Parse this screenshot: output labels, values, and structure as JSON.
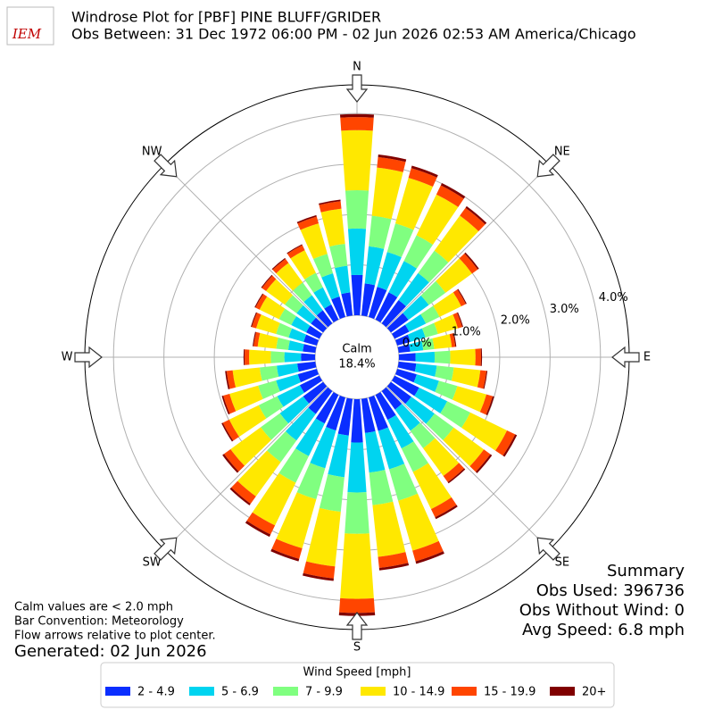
{
  "chart_data": {
    "type": "windrose",
    "logo_text": "IEM",
    "title": "Windrose Plot for [PBF] PINE BLUFF/GRIDER",
    "subtitle": "Obs Between: 31 Dec 1972 06:00 PM - 02 Jun 2026 02:53 AM America/Chicago",
    "calm_label": "Calm",
    "calm_value": "18.4%",
    "compass": [
      "N",
      "NE",
      "E",
      "SE",
      "S",
      "SW",
      "W",
      "NW"
    ],
    "categories": [
      null,
      null,
      null,
      null,
      null,
      null,
      null,
      null,
      null,
      null,
      null,
      null,
      null,
      null,
      null,
      null,
      null,
      null,
      null,
      null,
      null,
      null,
      null,
      null,
      null,
      null,
      null,
      null,
      null,
      null,
      null,
      null,
      null,
      null,
      null,
      null
    ],
    "rlim": [
      0,
      4.57
    ],
    "rticks": [
      {
        "value": 0,
        "label": "0.0%"
      },
      {
        "value": 1,
        "label": "1.0%"
      },
      {
        "value": 2,
        "label": "2.0%"
      },
      {
        "value": 3,
        "label": "3.0%"
      },
      {
        "value": 4,
        "label": "4.0%"
      }
    ],
    "grid": true,
    "legend_title": "Wind Speed [mph]",
    "series": [
      {
        "name": "2 - 4.9",
        "color": "#0a2eff",
        "values": [
          0.8,
          0.64,
          0.62,
          0.6,
          0.57,
          0.43,
          0.32,
          0.27,
          0.23,
          0.33,
          0.35,
          0.4,
          0.54,
          0.5,
          0.45,
          0.55,
          0.69,
          0.68,
          0.86,
          0.73,
          0.68,
          0.63,
          0.56,
          0.49,
          0.43,
          0.39,
          0.36,
          0.28,
          0.25,
          0.27,
          0.29,
          0.3,
          0.32,
          0.33,
          0.42,
          0.46
        ]
      },
      {
        "name": "5 - 6.9",
        "color": "#00d4f0",
        "values": [
          0.92,
          0.74,
          0.72,
          0.69,
          0.66,
          0.5,
          0.37,
          0.31,
          0.26,
          0.38,
          0.41,
          0.46,
          0.62,
          0.57,
          0.52,
          0.63,
          0.79,
          0.79,
          0.99,
          0.83,
          0.78,
          0.72,
          0.65,
          0.57,
          0.5,
          0.45,
          0.41,
          0.33,
          0.29,
          0.31,
          0.33,
          0.35,
          0.37,
          0.38,
          0.48,
          0.53
        ]
      },
      {
        "name": "7 - 9.9",
        "color": "#80ff80",
        "values": [
          0.76,
          0.61,
          0.59,
          0.57,
          0.55,
          0.41,
          0.3,
          0.26,
          0.22,
          0.31,
          0.34,
          0.38,
          0.51,
          0.47,
          0.43,
          0.52,
          0.65,
          0.65,
          0.82,
          0.69,
          0.64,
          0.59,
          0.53,
          0.47,
          0.41,
          0.37,
          0.34,
          0.27,
          0.24,
          0.26,
          0.27,
          0.29,
          0.31,
          0.32,
          0.4,
          0.44
        ]
      },
      {
        "name": "10 - 14.9",
        "color": "#ffe800",
        "values": [
          1.19,
          0.96,
          0.94,
          0.9,
          0.86,
          0.65,
          0.48,
          0.41,
          0.35,
          0.5,
          0.53,
          0.6,
          0.81,
          0.74,
          0.68,
          0.82,
          1.03,
          1.03,
          1.29,
          1.09,
          1.01,
          0.94,
          0.84,
          0.74,
          0.65,
          0.59,
          0.54,
          0.43,
          0.37,
          0.41,
          0.43,
          0.46,
          0.48,
          0.5,
          0.63,
          0.7
        ]
      },
      {
        "name": "15 - 19.9",
        "color": "#ff4500",
        "values": [
          0.26,
          0.21,
          0.2,
          0.2,
          0.19,
          0.14,
          0.1,
          0.09,
          0.07,
          0.11,
          0.12,
          0.13,
          0.18,
          0.16,
          0.15,
          0.18,
          0.22,
          0.22,
          0.28,
          0.24,
          0.22,
          0.2,
          0.18,
          0.16,
          0.14,
          0.13,
          0.12,
          0.09,
          0.08,
          0.09,
          0.09,
          0.1,
          0.1,
          0.11,
          0.14,
          0.15
        ]
      },
      {
        "name": "20+",
        "color": "#800000",
        "values": [
          0.06,
          0.05,
          0.05,
          0.05,
          0.04,
          0.03,
          0.02,
          0.02,
          0.02,
          0.02,
          0.02,
          0.03,
          0.04,
          0.04,
          0.03,
          0.04,
          0.05,
          0.05,
          0.06,
          0.05,
          0.05,
          0.05,
          0.04,
          0.04,
          0.03,
          0.03,
          0.03,
          0.02,
          0.02,
          0.02,
          0.02,
          0.02,
          0.02,
          0.02,
          0.03,
          0.03
        ]
      }
    ],
    "summary": [
      "Summary",
      "Obs Used: 396736",
      "Obs Without Wind: 0",
      "Avg Speed: 6.8 mph"
    ],
    "notes": [
      "Calm values are < 2.0 mph",
      "Bar Convention: Meteorology",
      "Flow arrows relative to plot center."
    ],
    "generated": "Generated: 02 Jun 2026"
  }
}
